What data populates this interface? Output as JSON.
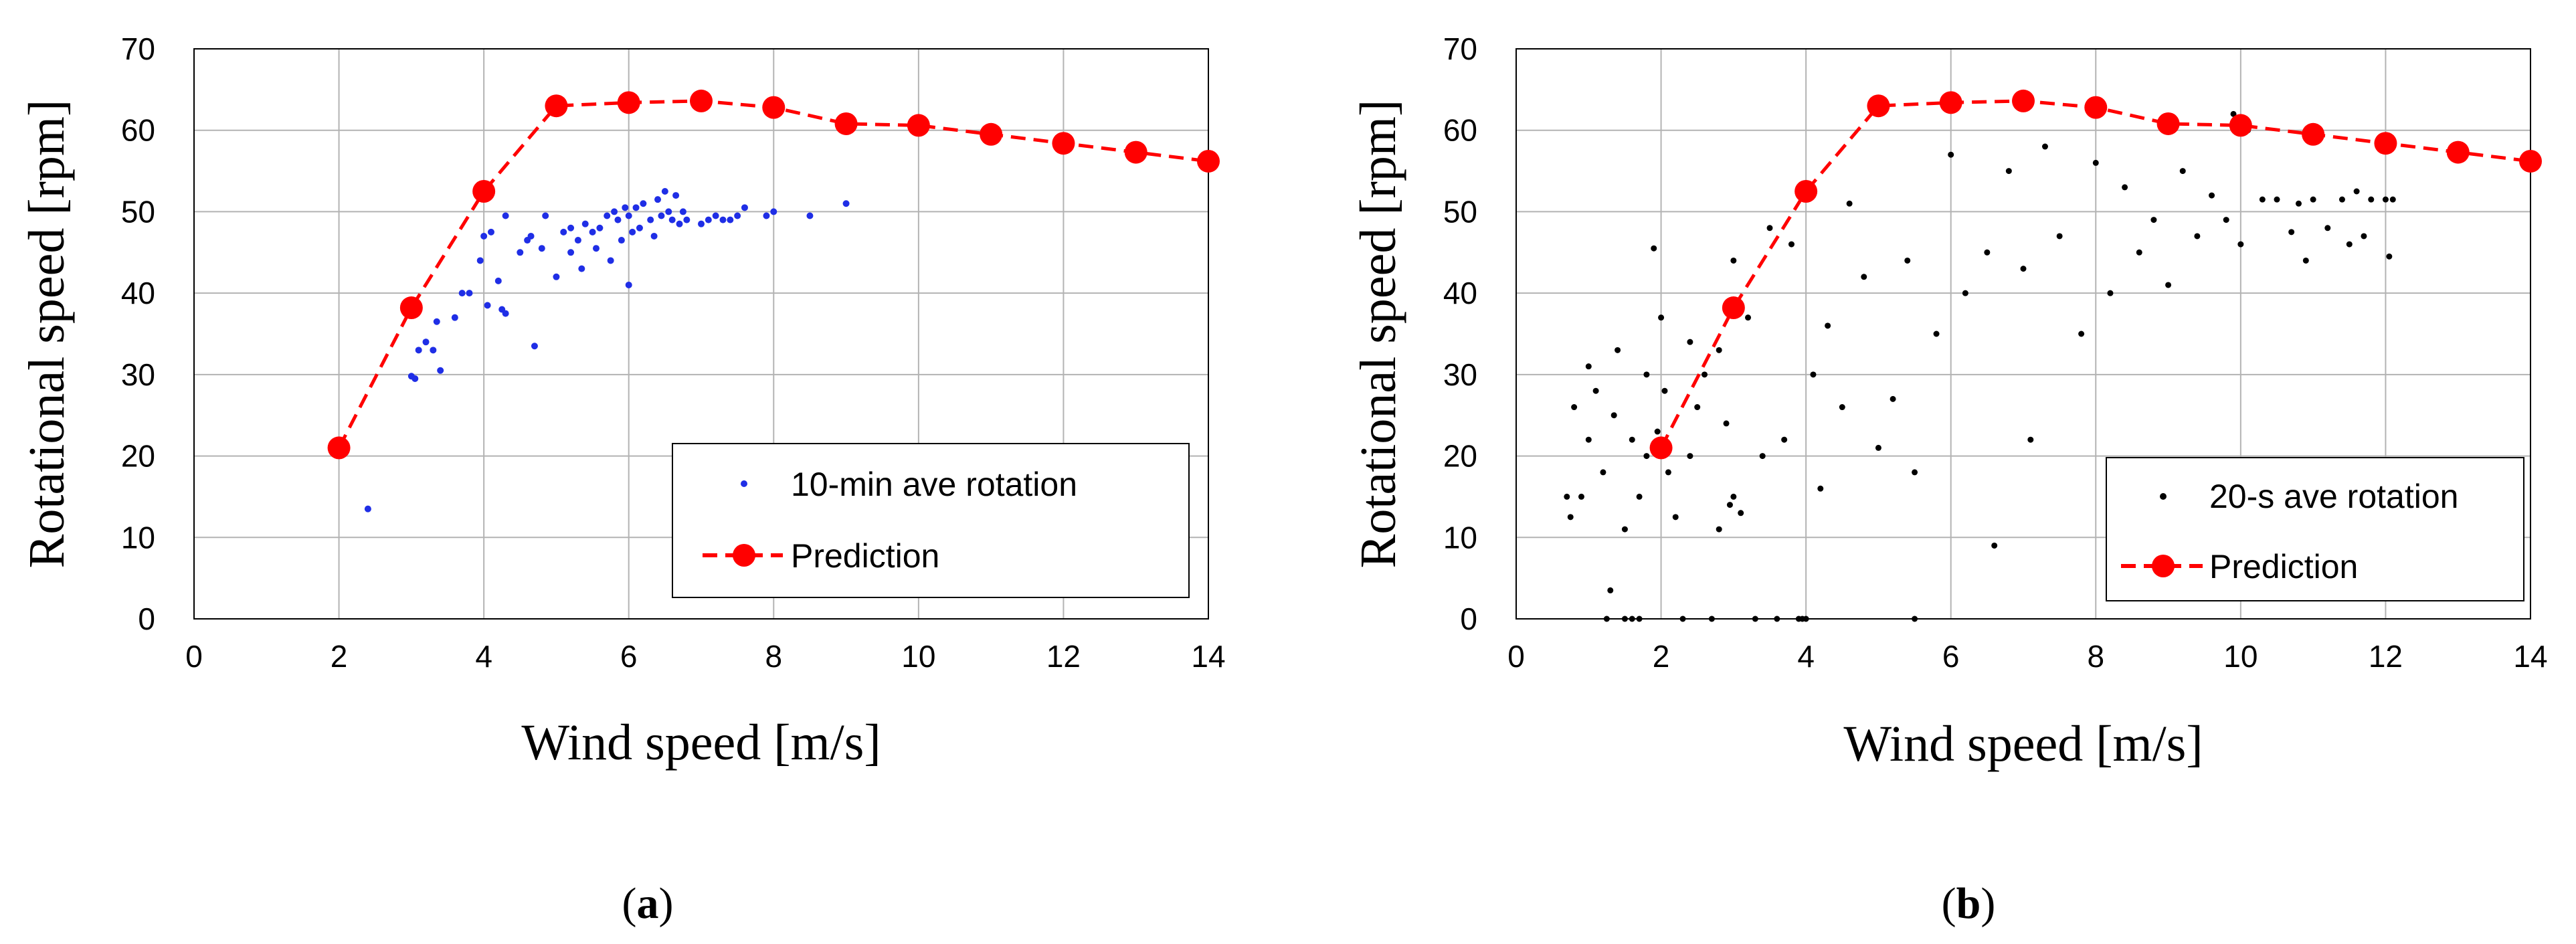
{
  "chart_data": [
    {
      "type": "scatter",
      "panel_label": "a",
      "xlabel": "Wind speed  [m/s]",
      "ylabel": "Rotational speed  [rpm]",
      "xlim": [
        0,
        14
      ],
      "ylim": [
        0,
        70
      ],
      "xticks": [
        "0",
        "2",
        "4",
        "6",
        "8",
        "10",
        "12",
        "14"
      ],
      "yticks": [
        "0",
        "10",
        "20",
        "30",
        "40",
        "50",
        "60",
        "70"
      ],
      "grid": true,
      "legend_position": "bottom-right",
      "colors": {
        "measured": "#1f2ee6",
        "prediction": "#ff0000"
      },
      "series": [
        {
          "name": "10-min ave rotation",
          "style": "markers",
          "points": [
            [
              2.4,
              13.5
            ],
            [
              3.0,
              29.8
            ],
            [
              3.05,
              29.5
            ],
            [
              3.1,
              33.0
            ],
            [
              3.2,
              34.0
            ],
            [
              3.3,
              33.0
            ],
            [
              3.35,
              36.5
            ],
            [
              3.4,
              30.5
            ],
            [
              3.6,
              37.0
            ],
            [
              3.7,
              40.0
            ],
            [
              3.8,
              40.0
            ],
            [
              3.95,
              44.0
            ],
            [
              4.0,
              47.0
            ],
            [
              4.05,
              38.5
            ],
            [
              4.1,
              47.5
            ],
            [
              4.2,
              41.5
            ],
            [
              4.25,
              38.0
            ],
            [
              4.3,
              37.5
            ],
            [
              4.3,
              49.5
            ],
            [
              4.5,
              45.0
            ],
            [
              4.6,
              46.5
            ],
            [
              4.65,
              47.0
            ],
            [
              4.7,
              33.5
            ],
            [
              4.8,
              45.5
            ],
            [
              4.85,
              49.5
            ],
            [
              5.0,
              42.0
            ],
            [
              5.1,
              47.5
            ],
            [
              5.2,
              48.0
            ],
            [
              5.2,
              45.0
            ],
            [
              5.3,
              46.5
            ],
            [
              5.35,
              43.0
            ],
            [
              5.4,
              48.5
            ],
            [
              5.5,
              47.5
            ],
            [
              5.55,
              45.5
            ],
            [
              5.6,
              48.0
            ],
            [
              5.7,
              49.5
            ],
            [
              5.75,
              44.0
            ],
            [
              5.8,
              50.0
            ],
            [
              5.85,
              49.0
            ],
            [
              5.9,
              46.5
            ],
            [
              5.95,
              50.5
            ],
            [
              6.0,
              41.0
            ],
            [
              6.0,
              49.5
            ],
            [
              6.05,
              47.5
            ],
            [
              6.1,
              50.5
            ],
            [
              6.15,
              48.0
            ],
            [
              6.2,
              51.0
            ],
            [
              6.3,
              49.0
            ],
            [
              6.35,
              47.0
            ],
            [
              6.4,
              51.5
            ],
            [
              6.45,
              49.5
            ],
            [
              6.5,
              52.5
            ],
            [
              6.55,
              50.0
            ],
            [
              6.6,
              49.0
            ],
            [
              6.65,
              52.0
            ],
            [
              6.7,
              48.5
            ],
            [
              6.75,
              50.0
            ],
            [
              6.8,
              49.0
            ],
            [
              7.0,
              48.5
            ],
            [
              7.1,
              49.0
            ],
            [
              7.2,
              49.5
            ],
            [
              7.3,
              49.0
            ],
            [
              7.4,
              49.0
            ],
            [
              7.5,
              49.5
            ],
            [
              7.6,
              50.5
            ],
            [
              7.9,
              49.5
            ],
            [
              8.0,
              50.0
            ],
            [
              8.5,
              49.5
            ],
            [
              9.0,
              51.0
            ]
          ]
        },
        {
          "name": "Prediction",
          "style": "line+markers",
          "points": [
            [
              2,
              21
            ],
            [
              3,
              38.2
            ],
            [
              4,
              52.5
            ],
            [
              5,
              63
            ],
            [
              6,
              63.4
            ],
            [
              7,
              63.6
            ],
            [
              8,
              62.8
            ],
            [
              9,
              60.8
            ],
            [
              10,
              60.6
            ],
            [
              11,
              59.5
            ],
            [
              12,
              58.4
            ],
            [
              13,
              57.3
            ],
            [
              14,
              56.2
            ]
          ]
        }
      ]
    },
    {
      "type": "scatter",
      "panel_label": "b",
      "xlabel": "Wind speed  [m/s]",
      "ylabel": "Rotational speed  [rpm]",
      "xlim": [
        0,
        14
      ],
      "ylim": [
        0,
        70
      ],
      "xticks": [
        "0",
        "2",
        "4",
        "6",
        "8",
        "10",
        "12",
        "14"
      ],
      "yticks": [
        "0",
        "10",
        "20",
        "30",
        "40",
        "50",
        "60",
        "70"
      ],
      "grid": true,
      "legend_position": "bottom-right",
      "colors": {
        "measured": "#000000",
        "prediction": "#ff0000"
      },
      "series": [
        {
          "name": "20-s ave rotation",
          "style": "markers",
          "points": [
            [
              0.7,
              15
            ],
            [
              0.75,
              12.5
            ],
            [
              0.8,
              26
            ],
            [
              0.9,
              15
            ],
            [
              1.0,
              22
            ],
            [
              1.0,
              31
            ],
            [
              1.1,
              28
            ],
            [
              1.2,
              18
            ],
            [
              1.25,
              0
            ],
            [
              1.3,
              3.5
            ],
            [
              1.35,
              25
            ],
            [
              1.4,
              33
            ],
            [
              1.5,
              11
            ],
            [
              1.5,
              0
            ],
            [
              1.6,
              0
            ],
            [
              1.6,
              22
            ],
            [
              1.7,
              0
            ],
            [
              1.7,
              15
            ],
            [
              1.8,
              30
            ],
            [
              1.8,
              20
            ],
            [
              1.9,
              45.5
            ],
            [
              1.95,
              23
            ],
            [
              2.0,
              37
            ],
            [
              2.05,
              28
            ],
            [
              2.1,
              18
            ],
            [
              2.2,
              12.5
            ],
            [
              2.3,
              0
            ],
            [
              2.4,
              34
            ],
            [
              2.4,
              20
            ],
            [
              2.5,
              26
            ],
            [
              2.6,
              30
            ],
            [
              2.7,
              0
            ],
            [
              2.8,
              11
            ],
            [
              2.8,
              33
            ],
            [
              2.9,
              24
            ],
            [
              2.95,
              14
            ],
            [
              3.0,
              15
            ],
            [
              3.0,
              44
            ],
            [
              3.1,
              13
            ],
            [
              3.2,
              37
            ],
            [
              3.3,
              0
            ],
            [
              3.4,
              20
            ],
            [
              3.5,
              48
            ],
            [
              3.6,
              0
            ],
            [
              3.7,
              22
            ],
            [
              3.8,
              46
            ],
            [
              3.9,
              0
            ],
            [
              3.95,
              0
            ],
            [
              4.0,
              0
            ],
            [
              4.1,
              30
            ],
            [
              4.2,
              16
            ],
            [
              4.3,
              36
            ],
            [
              4.5,
              26
            ],
            [
              4.6,
              51
            ],
            [
              4.8,
              42
            ],
            [
              5.0,
              21
            ],
            [
              5.2,
              27
            ],
            [
              5.4,
              44
            ],
            [
              5.5,
              0
            ],
            [
              5.5,
              18
            ],
            [
              5.8,
              35
            ],
            [
              6.0,
              57
            ],
            [
              6.2,
              40
            ],
            [
              6.5,
              45
            ],
            [
              6.6,
              9
            ],
            [
              6.8,
              55
            ],
            [
              7.0,
              43
            ],
            [
              7.1,
              22
            ],
            [
              7.3,
              58
            ],
            [
              7.5,
              47
            ],
            [
              7.8,
              35
            ],
            [
              8.0,
              56
            ],
            [
              8.2,
              40
            ],
            [
              8.4,
              53
            ],
            [
              8.6,
              45
            ],
            [
              8.8,
              49
            ],
            [
              9.0,
              41
            ],
            [
              9.2,
              55
            ],
            [
              9.4,
              47
            ],
            [
              9.6,
              52
            ],
            [
              9.8,
              49
            ],
            [
              9.9,
              62
            ],
            [
              10.0,
              46
            ],
            [
              10.1,
              60
            ],
            [
              10.3,
              51.5
            ],
            [
              10.5,
              51.5
            ],
            [
              10.7,
              47.5
            ],
            [
              10.8,
              51
            ],
            [
              10.9,
              44
            ],
            [
              11.0,
              51.5
            ],
            [
              11.2,
              48
            ],
            [
              11.4,
              51.5
            ],
            [
              11.5,
              46
            ],
            [
              11.6,
              52.5
            ],
            [
              11.7,
              47
            ],
            [
              11.8,
              51.5
            ],
            [
              12.0,
              51.5
            ],
            [
              12.05,
              44.5
            ],
            [
              12.1,
              51.5
            ]
          ]
        },
        {
          "name": "Prediction",
          "style": "line+markers",
          "points": [
            [
              2,
              21
            ],
            [
              3,
              38.2
            ],
            [
              4,
              52.5
            ],
            [
              5,
              63
            ],
            [
              6,
              63.4
            ],
            [
              7,
              63.6
            ],
            [
              8,
              62.8
            ],
            [
              9,
              60.8
            ],
            [
              10,
              60.6
            ],
            [
              11,
              59.5
            ],
            [
              12,
              58.4
            ],
            [
              13,
              57.3
            ],
            [
              14,
              56.2
            ]
          ]
        }
      ]
    }
  ]
}
